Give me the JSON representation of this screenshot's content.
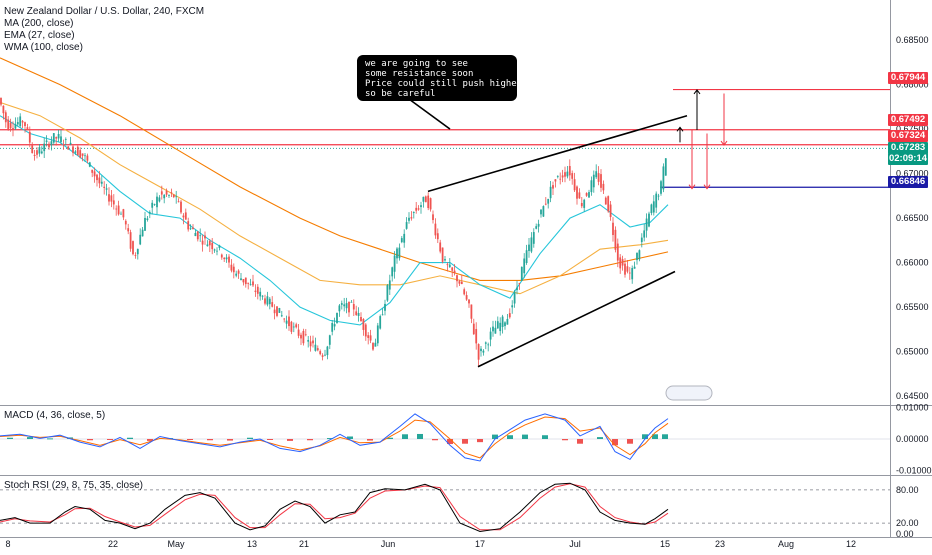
{
  "legend": {
    "symbol": "New Zealand Dollar / U.S. Dollar, 240, FXCM",
    "ma": "MA (200, close)",
    "ema": "EMA (27, close)",
    "wma": "WMA (100, close)"
  },
  "callout": {
    "lines": [
      "we are going to see",
      "some resistance soon",
      "Price could still push higher",
      "so be careful"
    ]
  },
  "macd_title": "MACD (4, 36, close, 5)",
  "rsi_title": "Stoch RSI (29, 8, 75, 35, close)",
  "price_tags": [
    {
      "label": "0.67944",
      "color": "#f23645"
    },
    {
      "label": "0.67492",
      "color": "#f23645"
    },
    {
      "label": "0.67324",
      "color": "#f23645"
    },
    {
      "label": "0.67283",
      "color": "#089981"
    },
    {
      "label": "02:09:14",
      "color": "#089981"
    },
    {
      "label": "0.66846",
      "color": "#1a1aa6"
    }
  ],
  "colors": {
    "up": "#26a69a",
    "down": "#ef5350",
    "ema": "#26c6da",
    "wma": "#f5b041",
    "ma": "#f57c00",
    "macd": "#2962ff",
    "signal": "#ff6d00",
    "rsi_k": "#000000",
    "rsi_d": "#f23645"
  },
  "chart_data": {
    "type": "candlestick",
    "x_ticks": [
      "8",
      "22",
      "May",
      "13",
      "21",
      "Jun",
      "17",
      "Jul",
      "15",
      "23",
      "Aug",
      "12"
    ],
    "y_ticks": [
      "0.68500",
      "0.68000",
      "0.67500",
      "0.67000",
      "0.66500",
      "0.66000",
      "0.65500",
      "0.65000",
      "0.64500"
    ],
    "ylim": [
      0.644,
      0.6895
    ],
    "last_price": 0.67283,
    "price_path": [
      [
        0,
        0.6785
      ],
      [
        8,
        0.6755
      ],
      [
        14,
        0.6755
      ],
      [
        25,
        0.676
      ],
      [
        35,
        0.672
      ],
      [
        55,
        0.674
      ],
      [
        60,
        0.674
      ],
      [
        85,
        0.672
      ],
      [
        100,
        0.669
      ],
      [
        125,
        0.665
      ],
      [
        135,
        0.6605
      ],
      [
        145,
        0.6645
      ],
      [
        160,
        0.6675
      ],
      [
        175,
        0.6675
      ],
      [
        190,
        0.664
      ],
      [
        205,
        0.6625
      ],
      [
        220,
        0.6615
      ],
      [
        235,
        0.659
      ],
      [
        255,
        0.657
      ],
      [
        275,
        0.655
      ],
      [
        295,
        0.6525
      ],
      [
        310,
        0.651
      ],
      [
        325,
        0.6497
      ],
      [
        340,
        0.655
      ],
      [
        355,
        0.655
      ],
      [
        375,
        0.6505
      ],
      [
        395,
        0.66
      ],
      [
        410,
        0.665
      ],
      [
        428,
        0.6673
      ],
      [
        445,
        0.66
      ],
      [
        460,
        0.658
      ],
      [
        470,
        0.655
      ],
      [
        480,
        0.6495
      ],
      [
        495,
        0.6525
      ],
      [
        510,
        0.654
      ],
      [
        525,
        0.66
      ],
      [
        540,
        0.665
      ],
      [
        555,
        0.669
      ],
      [
        570,
        0.6705
      ],
      [
        582,
        0.6665
      ],
      [
        598,
        0.67
      ],
      [
        610,
        0.666
      ],
      [
        620,
        0.66
      ],
      [
        632,
        0.6585
      ],
      [
        640,
        0.6615
      ],
      [
        652,
        0.666
      ],
      [
        662,
        0.6685
      ],
      [
        668,
        0.6728
      ]
    ],
    "ema_path": [
      [
        0,
        0.6765
      ],
      [
        30,
        0.6745
      ],
      [
        60,
        0.6735
      ],
      [
        90,
        0.671
      ],
      [
        120,
        0.668
      ],
      [
        150,
        0.6655
      ],
      [
        180,
        0.665
      ],
      [
        210,
        0.6625
      ],
      [
        240,
        0.6605
      ],
      [
        270,
        0.658
      ],
      [
        300,
        0.655
      ],
      [
        330,
        0.6535
      ],
      [
        360,
        0.653
      ],
      [
        390,
        0.6555
      ],
      [
        420,
        0.66
      ],
      [
        450,
        0.66
      ],
      [
        480,
        0.6575
      ],
      [
        510,
        0.656
      ],
      [
        540,
        0.661
      ],
      [
        570,
        0.665
      ],
      [
        600,
        0.6665
      ],
      [
        630,
        0.664
      ],
      [
        650,
        0.6645
      ],
      [
        668,
        0.6665
      ]
    ],
    "wma_path": [
      [
        0,
        0.678
      ],
      [
        40,
        0.6765
      ],
      [
        80,
        0.674
      ],
      [
        120,
        0.671
      ],
      [
        160,
        0.6685
      ],
      [
        200,
        0.666
      ],
      [
        240,
        0.663
      ],
      [
        280,
        0.6605
      ],
      [
        320,
        0.658
      ],
      [
        360,
        0.6575
      ],
      [
        400,
        0.6575
      ],
      [
        440,
        0.6585
      ],
      [
        480,
        0.6575
      ],
      [
        520,
        0.6565
      ],
      [
        560,
        0.6585
      ],
      [
        600,
        0.6615
      ],
      [
        640,
        0.662
      ],
      [
        668,
        0.6625
      ]
    ],
    "ma_path": [
      [
        0,
        0.683
      ],
      [
        60,
        0.68
      ],
      [
        120,
        0.6765
      ],
      [
        180,
        0.6725
      ],
      [
        240,
        0.6685
      ],
      [
        300,
        0.665
      ],
      [
        340,
        0.663
      ],
      [
        380,
        0.6615
      ],
      [
        420,
        0.66
      ],
      [
        450,
        0.659
      ],
      [
        480,
        0.658
      ],
      [
        520,
        0.658
      ],
      [
        560,
        0.6585
      ],
      [
        600,
        0.6595
      ],
      [
        640,
        0.6605
      ],
      [
        668,
        0.6612
      ]
    ],
    "horizontal_levels": [
      {
        "value": 0.67944,
        "color": "#f23645",
        "x_start": 673
      },
      {
        "value": 0.67492,
        "color": "#f23645",
        "x_start": 0
      },
      {
        "value": 0.67324,
        "color": "#f23645",
        "x_start": 0
      },
      {
        "value": 0.66846,
        "color": "#1a1aa6",
        "x_start": 660
      }
    ],
    "trendlines": [
      {
        "from": [
          428,
          0.668
        ],
        "to": [
          687,
          0.6765
        ]
      },
      {
        "from": [
          478,
          0.6483
        ],
        "to": [
          675,
          0.659
        ]
      },
      {
        "from": [
          405,
          0.6787
        ],
        "to": [
          450,
          0.675
        ]
      }
    ],
    "arrows": [
      {
        "x": 680,
        "from": 0.6735,
        "to": 0.6752
      },
      {
        "x": 697,
        "from": 0.6749,
        "to": 0.6794
      },
      {
        "x": 692,
        "from": 0.6749,
        "to": 0.6683
      },
      {
        "x": 707,
        "from": 0.6745,
        "to": 0.6683
      },
      {
        "x": 724,
        "from": 0.679,
        "to": 0.6732
      }
    ],
    "macd": {
      "y_ticks": [
        "0.01000",
        "0.00000",
        "-0.01000"
      ],
      "ylim": [
        -0.0105,
        0.0105
      ],
      "macd_path": [
        [
          0,
          0.001
        ],
        [
          20,
          0.0015
        ],
        [
          40,
          0.0002
        ],
        [
          60,
          0.0012
        ],
        [
          80,
          -0.001
        ],
        [
          100,
          -0.0025
        ],
        [
          120,
          0.0005
        ],
        [
          140,
          -0.003
        ],
        [
          160,
          0.0008
        ],
        [
          180,
          -0.0005
        ],
        [
          200,
          -0.0015
        ],
        [
          220,
          -0.0025
        ],
        [
          240,
          -0.001
        ],
        [
          260,
          0.0
        ],
        [
          280,
          -0.003
        ],
        [
          300,
          -0.004
        ],
        [
          320,
          -0.002
        ],
        [
          340,
          0.0015
        ],
        [
          360,
          -0.002
        ],
        [
          380,
          -0.001
        ],
        [
          400,
          0.004
        ],
        [
          415,
          0.008
        ],
        [
          430,
          0.005
        ],
        [
          450,
          -0.002
        ],
        [
          465,
          -0.006
        ],
        [
          480,
          -0.007
        ],
        [
          495,
          0.0
        ],
        [
          510,
          0.003
        ],
        [
          525,
          0.006
        ],
        [
          545,
          0.008
        ],
        [
          565,
          0.006
        ],
        [
          580,
          0.001
        ],
        [
          600,
          0.004
        ],
        [
          615,
          -0.004
        ],
        [
          630,
          -0.0065
        ],
        [
          645,
          0.0
        ],
        [
          655,
          0.0035
        ],
        [
          668,
          0.0065
        ]
      ],
      "signal_path": [
        [
          0,
          0.0008
        ],
        [
          20,
          0.0012
        ],
        [
          40,
          0.0005
        ],
        [
          60,
          0.0009
        ],
        [
          80,
          -0.0005
        ],
        [
          100,
          -0.002
        ],
        [
          120,
          -0.0002
        ],
        [
          140,
          -0.0018
        ],
        [
          160,
          0.0002
        ],
        [
          180,
          -0.0003
        ],
        [
          200,
          -0.0012
        ],
        [
          220,
          -0.002
        ],
        [
          240,
          -0.0012
        ],
        [
          260,
          -0.0004
        ],
        [
          280,
          -0.0022
        ],
        [
          300,
          -0.0035
        ],
        [
          320,
          -0.0022
        ],
        [
          340,
          0.0005
        ],
        [
          360,
          -0.0012
        ],
        [
          380,
          -0.001
        ],
        [
          400,
          0.0025
        ],
        [
          415,
          0.006
        ],
        [
          430,
          0.0055
        ],
        [
          450,
          0.0
        ],
        [
          465,
          -0.0045
        ],
        [
          480,
          -0.006
        ],
        [
          495,
          -0.0015
        ],
        [
          510,
          0.002
        ],
        [
          525,
          0.0045
        ],
        [
          545,
          0.007
        ],
        [
          565,
          0.0065
        ],
        [
          580,
          0.0025
        ],
        [
          600,
          0.0035
        ],
        [
          615,
          -0.002
        ],
        [
          630,
          -0.005
        ],
        [
          645,
          -0.0015
        ],
        [
          655,
          0.002
        ],
        [
          668,
          0.005
        ]
      ],
      "histogram": [
        [
          10,
          0.0004
        ],
        [
          30,
          0.0006
        ],
        [
          50,
          0.0002
        ],
        [
          70,
          0.0005
        ],
        [
          90,
          -0.0004
        ],
        [
          110,
          -0.0003
        ],
        [
          130,
          0.0004
        ],
        [
          150,
          -0.0006
        ],
        [
          170,
          0.0003
        ],
        [
          190,
          -0.0002
        ],
        [
          210,
          -0.0004
        ],
        [
          230,
          -0.0005
        ],
        [
          250,
          0.0004
        ],
        [
          270,
          -0.0003
        ],
        [
          290,
          -0.0006
        ],
        [
          310,
          -0.0004
        ],
        [
          330,
          0.0003
        ],
        [
          350,
          0.0008
        ],
        [
          370,
          -0.0005
        ],
        [
          390,
          0.0004
        ],
        [
          405,
          0.0015
        ],
        [
          420,
          0.0016
        ],
        [
          435,
          -0.0004
        ],
        [
          450,
          -0.0016
        ],
        [
          465,
          -0.0015
        ],
        [
          480,
          -0.001
        ],
        [
          495,
          0.0014
        ],
        [
          510,
          0.0012
        ],
        [
          525,
          0.0014
        ],
        [
          545,
          0.0012
        ],
        [
          565,
          -0.0004
        ],
        [
          580,
          -0.0015
        ],
        [
          600,
          0.0006
        ],
        [
          615,
          -0.002
        ],
        [
          630,
          -0.0015
        ],
        [
          645,
          0.0015
        ],
        [
          655,
          0.0015
        ],
        [
          665,
          0.0015
        ]
      ]
    },
    "stoch_rsi": {
      "y_ticks": [
        "80.00",
        "20.00",
        "0.00"
      ],
      "ylim": [
        -5,
        105
      ],
      "bands": [
        80,
        20
      ],
      "k_path": [
        [
          0,
          25
        ],
        [
          15,
          30
        ],
        [
          30,
          20
        ],
        [
          50,
          20
        ],
        [
          65,
          40
        ],
        [
          75,
          50
        ],
        [
          90,
          45
        ],
        [
          105,
          25
        ],
        [
          120,
          20
        ],
        [
          135,
          10
        ],
        [
          150,
          20
        ],
        [
          165,
          45
        ],
        [
          185,
          70
        ],
        [
          200,
          75
        ],
        [
          215,
          65
        ],
        [
          235,
          20
        ],
        [
          250,
          8
        ],
        [
          265,
          15
        ],
        [
          280,
          45
        ],
        [
          295,
          60
        ],
        [
          310,
          50
        ],
        [
          325,
          20
        ],
        [
          340,
          35
        ],
        [
          355,
          40
        ],
        [
          370,
          75
        ],
        [
          385,
          82
        ],
        [
          405,
          80
        ],
        [
          425,
          90
        ],
        [
          440,
          80
        ],
        [
          460,
          20
        ],
        [
          480,
          5
        ],
        [
          500,
          10
        ],
        [
          520,
          40
        ],
        [
          540,
          75
        ],
        [
          555,
          90
        ],
        [
          570,
          92
        ],
        [
          585,
          80
        ],
        [
          600,
          40
        ],
        [
          615,
          25
        ],
        [
          630,
          20
        ],
        [
          645,
          18
        ],
        [
          655,
          28
        ],
        [
          668,
          45
        ]
      ],
      "d_path": [
        [
          0,
          22
        ],
        [
          15,
          28
        ],
        [
          30,
          24
        ],
        [
          50,
          22
        ],
        [
          65,
          35
        ],
        [
          75,
          46
        ],
        [
          90,
          47
        ],
        [
          105,
          32
        ],
        [
          120,
          22
        ],
        [
          135,
          13
        ],
        [
          150,
          16
        ],
        [
          165,
          36
        ],
        [
          185,
          62
        ],
        [
          200,
          72
        ],
        [
          215,
          70
        ],
        [
          235,
          30
        ],
        [
          250,
          12
        ],
        [
          265,
          12
        ],
        [
          280,
          35
        ],
        [
          295,
          55
        ],
        [
          310,
          54
        ],
        [
          325,
          28
        ],
        [
          340,
          30
        ],
        [
          355,
          38
        ],
        [
          370,
          65
        ],
        [
          385,
          78
        ],
        [
          405,
          80
        ],
        [
          425,
          87
        ],
        [
          440,
          84
        ],
        [
          460,
          32
        ],
        [
          480,
          8
        ],
        [
          500,
          8
        ],
        [
          520,
          30
        ],
        [
          540,
          65
        ],
        [
          555,
          85
        ],
        [
          570,
          91
        ],
        [
          585,
          85
        ],
        [
          600,
          50
        ],
        [
          615,
          30
        ],
        [
          630,
          22
        ],
        [
          645,
          18
        ],
        [
          655,
          22
        ],
        [
          668,
          38
        ]
      ]
    }
  }
}
